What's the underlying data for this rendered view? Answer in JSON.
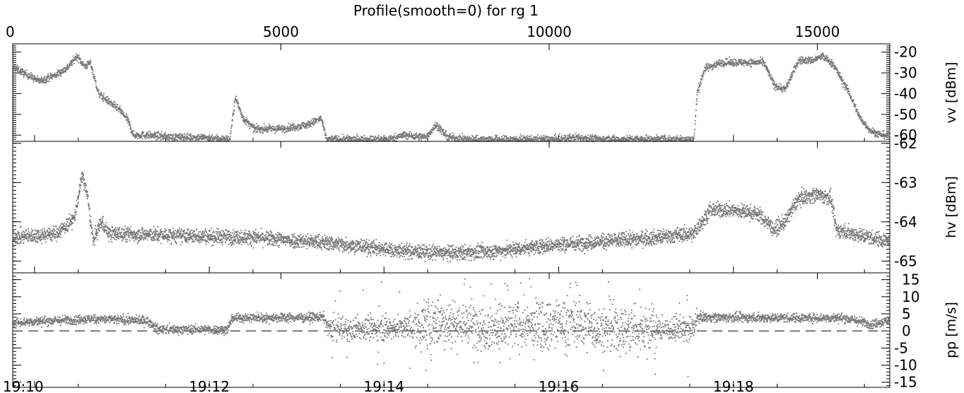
{
  "chart_data": {
    "type": "scatter",
    "title": "Profile(smooth=0) for rg 1",
    "top_axis": {
      "range": [
        0,
        16350
      ],
      "ticks": [
        0,
        5000,
        10000,
        15000
      ],
      "tick_labels": [
        "0",
        "5000",
        "10000",
        "15000"
      ]
    },
    "bottom_axis": {
      "range_minutes": [
        -0.25,
        9.79
      ],
      "tick_labels": [
        "19:10",
        "19:12",
        "19:14",
        "19:16",
        "19:18"
      ],
      "tick_values_minutes": [
        0,
        2,
        4,
        6,
        8
      ]
    },
    "panels": [
      {
        "id": "vv",
        "ylabel": "vv [dBm]",
        "ylim": [
          -63,
          -16
        ],
        "ticks": [
          -20,
          -30,
          -40,
          -50,
          -60
        ],
        "tick_labels": [
          "-20",
          "-30",
          "-40",
          "-50",
          "-60"
        ],
        "series_color": "#777777",
        "profile": [
          [
            0,
            -27
          ],
          [
            200,
            -30
          ],
          [
            500,
            -34
          ],
          [
            800,
            -31
          ],
          [
            1000,
            -28
          ],
          [
            1200,
            -22
          ],
          [
            1350,
            -27
          ],
          [
            1450,
            -25
          ],
          [
            1600,
            -40
          ],
          [
            1800,
            -44
          ],
          [
            2000,
            -48
          ],
          [
            2150,
            -53
          ],
          [
            2250,
            -60
          ],
          [
            2500,
            -60
          ],
          [
            3000,
            -61
          ],
          [
            3500,
            -61
          ],
          [
            4050,
            -62
          ],
          [
            4150,
            -42
          ],
          [
            4300,
            -52
          ],
          [
            4500,
            -57
          ],
          [
            5000,
            -57
          ],
          [
            5500,
            -55
          ],
          [
            5750,
            -52
          ],
          [
            5850,
            -62
          ],
          [
            6500,
            -62
          ],
          [
            7000,
            -62
          ],
          [
            7300,
            -60
          ],
          [
            7700,
            -61
          ],
          [
            7900,
            -55
          ],
          [
            8100,
            -61
          ],
          [
            8500,
            -62
          ],
          [
            9500,
            -62
          ],
          [
            10200,
            -62
          ],
          [
            10500,
            -61
          ],
          [
            11000,
            -62
          ],
          [
            12000,
            -62
          ],
          [
            12700,
            -62
          ],
          [
            12760,
            -40
          ],
          [
            12900,
            -28
          ],
          [
            13200,
            -25
          ],
          [
            13600,
            -25
          ],
          [
            14000,
            -25
          ],
          [
            14200,
            -36
          ],
          [
            14400,
            -38
          ],
          [
            14650,
            -24
          ],
          [
            14900,
            -24
          ],
          [
            15100,
            -22
          ],
          [
            15300,
            -26
          ],
          [
            15450,
            -33
          ],
          [
            15600,
            -40
          ],
          [
            15800,
            -52
          ],
          [
            16000,
            -58
          ],
          [
            16200,
            -60
          ],
          [
            16349,
            -60
          ]
        ],
        "jitter": 1.6
      },
      {
        "id": "hv",
        "ylabel": "hv [dBm]",
        "ylim": [
          -65.3,
          -61.95
        ],
        "ticks": [
          -62,
          -63,
          -64,
          -65
        ],
        "tick_labels": [
          "-62",
          "-63",
          "-64",
          "-65"
        ],
        "series_color": "#777777",
        "profile": [
          [
            0,
            -64.4
          ],
          [
            800,
            -64.3
          ],
          [
            1000,
            -64.1
          ],
          [
            1150,
            -63.9
          ],
          [
            1300,
            -62.8
          ],
          [
            1400,
            -63.4
          ],
          [
            1500,
            -64.5
          ],
          [
            1650,
            -64.0
          ],
          [
            1800,
            -64.3
          ],
          [
            3000,
            -64.35
          ],
          [
            4500,
            -64.4
          ],
          [
            6000,
            -64.55
          ],
          [
            7300,
            -64.75
          ],
          [
            8200,
            -64.8
          ],
          [
            9000,
            -64.75
          ],
          [
            10000,
            -64.6
          ],
          [
            11000,
            -64.5
          ],
          [
            12000,
            -64.4
          ],
          [
            12700,
            -64.3
          ],
          [
            13000,
            -63.7
          ],
          [
            13400,
            -63.7
          ],
          [
            13900,
            -63.8
          ],
          [
            14200,
            -64.2
          ],
          [
            14400,
            -64.0
          ],
          [
            14650,
            -63.4
          ],
          [
            15000,
            -63.3
          ],
          [
            15250,
            -63.4
          ],
          [
            15350,
            -64.2
          ],
          [
            16000,
            -64.4
          ],
          [
            16349,
            -64.5
          ]
        ],
        "jitter": 0.17
      },
      {
        "id": "pp",
        "ylabel": "pp [m/s]",
        "ylim": [
          -16.5,
          17
        ],
        "ticks": [
          15,
          10,
          5,
          0,
          -5,
          -10,
          -15
        ],
        "tick_labels": [
          "15",
          "10",
          "5",
          "0",
          "-5",
          "-10",
          "-15"
        ],
        "reference_line": 0,
        "series_color": "#777777",
        "profile": [
          [
            0,
            2.5
          ],
          [
            1500,
            3.5
          ],
          [
            2500,
            3.0
          ],
          [
            2700,
            0.5
          ],
          [
            4000,
            0.3
          ],
          [
            4100,
            3.8
          ],
          [
            5800,
            4.0
          ],
          [
            5900,
            0.5
          ],
          [
            7500,
            1.0
          ],
          [
            8000,
            3.0
          ],
          [
            9000,
            0.8
          ],
          [
            9800,
            2.0
          ],
          [
            10500,
            2.5
          ],
          [
            11000,
            0.5
          ],
          [
            12700,
            0.5
          ],
          [
            12760,
            4.0
          ],
          [
            14500,
            3.8
          ],
          [
            15500,
            3.8
          ],
          [
            16000,
            2.0
          ],
          [
            16349,
            3.0
          ]
        ],
        "jitter": 1.2,
        "noisy_segments": [
          [
            5850,
            12750
          ]
        ]
      }
    ]
  }
}
